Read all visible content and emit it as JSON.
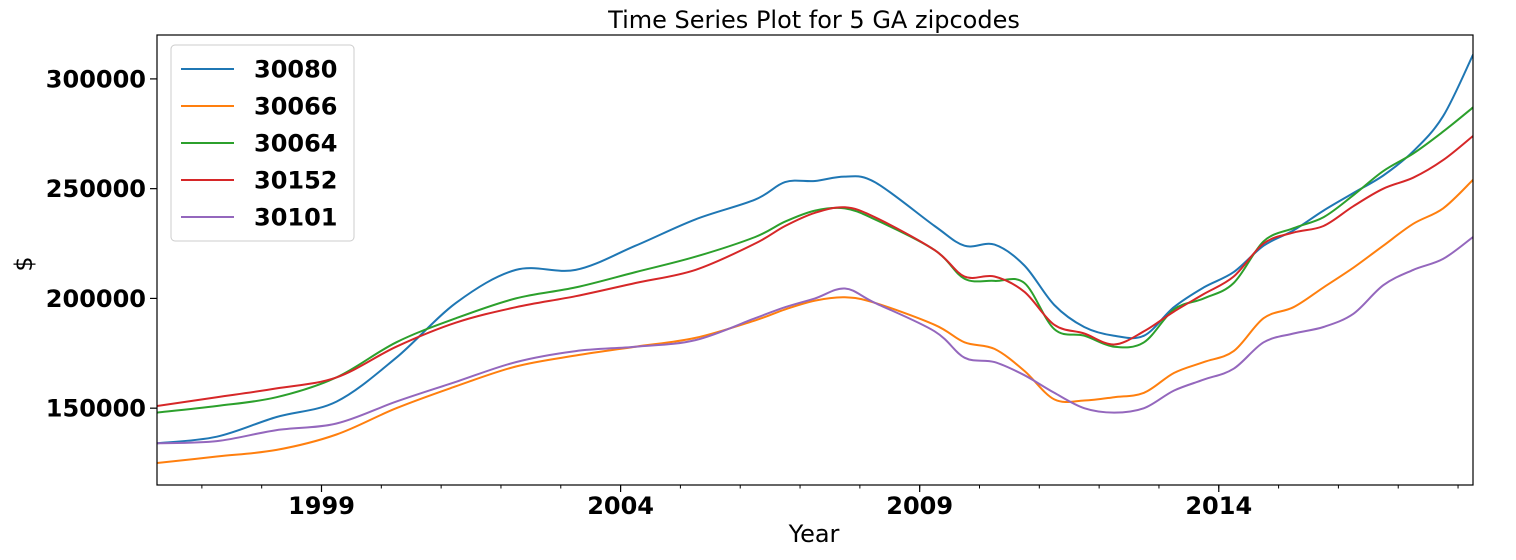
{
  "chart_data": {
    "type": "line",
    "title": "Time Series Plot for 5 GA zipcodes",
    "xlabel": "Year",
    "ylabel": "$",
    "xlim": [
      "1996-04",
      "2018-04"
    ],
    "ylim": [
      115000,
      320000
    ],
    "x_major_ticks": [
      "1999",
      "2004",
      "2009",
      "2014"
    ],
    "y_ticks": [
      150000,
      200000,
      250000,
      300000
    ],
    "y_tick_labels": [
      "150000",
      "200000",
      "250000",
      "300000"
    ],
    "legend_position": "upper-left",
    "grid": false,
    "x": [
      "1996-04",
      "1997-04",
      "1998-04",
      "1999-04",
      "2000-04",
      "2001-04",
      "2002-04",
      "2003-04",
      "2004-04",
      "2005-04",
      "2006-04",
      "2006-10",
      "2007-04",
      "2007-10",
      "2008-04",
      "2009-04",
      "2009-10",
      "2010-04",
      "2010-10",
      "2011-04",
      "2011-10",
      "2012-04",
      "2012-10",
      "2013-04",
      "2013-10",
      "2014-04",
      "2014-10",
      "2015-04",
      "2015-10",
      "2016-04",
      "2016-10",
      "2017-04",
      "2017-10",
      "2018-04"
    ],
    "series": [
      {
        "name": "30080",
        "color": "#1f77b4",
        "values": [
          134000,
          137000,
          146000,
          153000,
          173000,
          198000,
          213000,
          213000,
          224000,
          236000,
          245000,
          253000,
          253500,
          255500,
          253000,
          233000,
          224000,
          224500,
          215000,
          197000,
          187000,
          183000,
          183000,
          196000,
          205000,
          212000,
          224000,
          231000,
          240000,
          248000,
          256000,
          267000,
          283000,
          311000
        ]
      },
      {
        "name": "30066",
        "color": "#ff7f0e",
        "values": [
          125000,
          128000,
          131000,
          138000,
          150000,
          160000,
          169000,
          174000,
          178000,
          182000,
          190000,
          195000,
          199000,
          200500,
          198000,
          188000,
          180000,
          177000,
          167000,
          154000,
          153500,
          155000,
          157000,
          166000,
          171000,
          176000,
          191000,
          196000,
          205000,
          214000,
          224000,
          234000,
          241000,
          254000
        ]
      },
      {
        "name": "30064",
        "color": "#2ca02c",
        "values": [
          148000,
          151000,
          155000,
          164000,
          180000,
          191000,
          200000,
          205000,
          212000,
          219000,
          228000,
          235000,
          240000,
          241000,
          236000,
          222000,
          209000,
          208000,
          207000,
          186000,
          183000,
          178000,
          180000,
          195000,
          200000,
          207000,
          226000,
          232000,
          237000,
          247000,
          258000,
          266000,
          276000,
          287000
        ]
      },
      {
        "name": "30152",
        "color": "#d62728",
        "values": [
          151000,
          155000,
          159000,
          164000,
          178000,
          189000,
          196000,
          201000,
          207000,
          213000,
          225000,
          233000,
          239000,
          241500,
          237000,
          222000,
          210000,
          210000,
          203000,
          188000,
          184000,
          179000,
          185000,
          194000,
          202000,
          210000,
          225000,
          230000,
          233000,
          242000,
          250000,
          255000,
          263000,
          274000
        ]
      },
      {
        "name": "30101",
        "color": "#9467bd",
        "values": [
          134000,
          135000,
          140000,
          143000,
          153000,
          162000,
          171000,
          176000,
          178000,
          181000,
          191000,
          196000,
          200000,
          204500,
          198000,
          185000,
          173000,
          171000,
          165000,
          157000,
          150000,
          148000,
          150000,
          158000,
          163000,
          168000,
          180000,
          184000,
          187000,
          193000,
          206000,
          213000,
          218000,
          228000
        ]
      }
    ]
  }
}
